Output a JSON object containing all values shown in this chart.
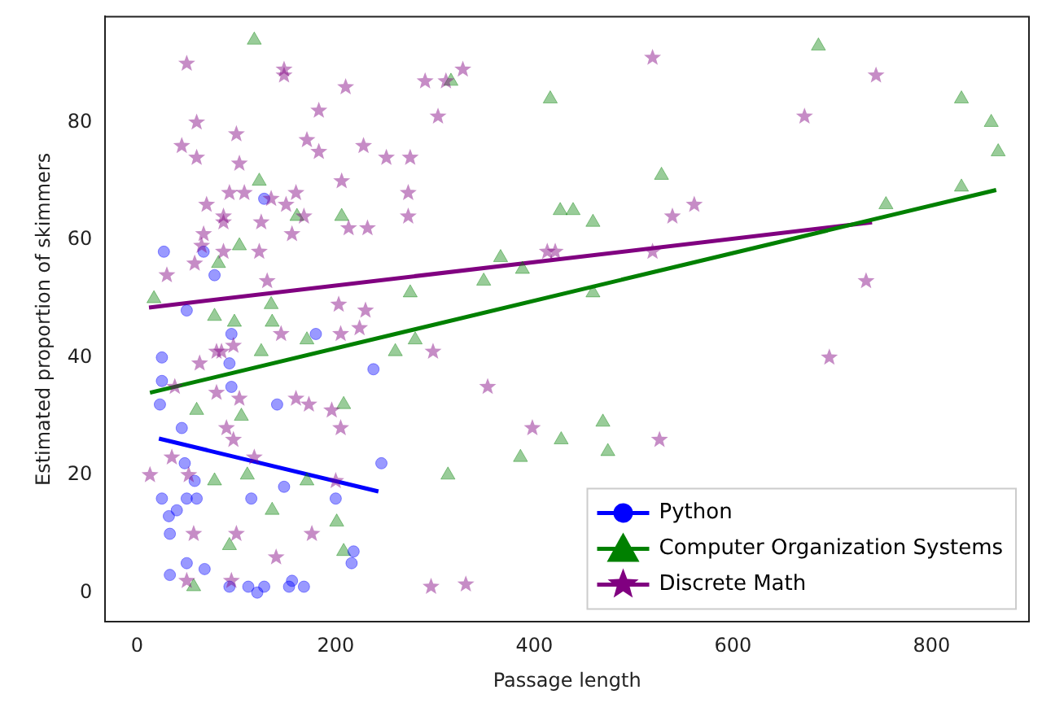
{
  "chart_data": {
    "type": "scatter",
    "xlabel": "Passage length",
    "ylabel": "Estimated proportion of skimmers",
    "xlim": [
      -32,
      898
    ],
    "ylim": [
      -5,
      98
    ],
    "xticks": [
      0,
      200,
      400,
      600,
      800
    ],
    "yticks": [
      0,
      20,
      40,
      60,
      80
    ],
    "grid": false,
    "legend": "bottom right",
    "series": [
      {
        "name": "Python",
        "color": "#0000ff",
        "marker": "circle",
        "x": [
          25,
          25,
          23,
          45,
          95,
          93,
          95,
          141,
          180,
          238,
          246,
          48,
          58,
          148,
          115,
          200,
          25,
          40,
          32,
          50,
          60,
          33,
          218,
          216,
          50,
          68,
          33,
          93,
          112,
          121,
          128,
          156,
          168,
          153,
          27,
          67,
          78,
          128,
          50
        ],
        "values": [
          40,
          36,
          32,
          28,
          44,
          39,
          35,
          32,
          44,
          38,
          22,
          22,
          19,
          18,
          16,
          16,
          16,
          14,
          13,
          16,
          16,
          10,
          7,
          5,
          5,
          4,
          3,
          1,
          1,
          0,
          1,
          2,
          1,
          1,
          58,
          58,
          54,
          67,
          48
        ]
      },
      {
        "name": "Computer Organization Systems",
        "color": "#008000",
        "marker": "triangle",
        "x": [
          118,
          123,
          206,
          161,
          103,
          82,
          17,
          275,
          135,
          78,
          98,
          136,
          171,
          125,
          260,
          280,
          60,
          105,
          208,
          111,
          78,
          171,
          136,
          201,
          208,
          93,
          57,
          313,
          686,
          416,
          316,
          830,
          860,
          867,
          528,
          426,
          439,
          459,
          754,
          830,
          366,
          349,
          388,
          459,
          469,
          427,
          474,
          386
        ],
        "values": [
          94,
          70,
          64,
          64,
          59,
          56,
          50,
          51,
          49,
          47,
          46,
          46,
          43,
          41,
          41,
          43,
          31,
          30,
          32,
          20,
          19,
          19,
          14,
          12,
          7,
          8,
          1,
          20,
          93,
          84,
          87,
          84,
          80,
          75,
          71,
          65,
          65,
          63,
          66,
          69,
          57,
          53,
          55,
          51,
          29,
          26,
          24,
          23
        ]
      },
      {
        "name": "Discrete Math",
        "color": "#800080",
        "marker": "star",
        "x": [
          50,
          148,
          148,
          210,
          290,
          303,
          183,
          60,
          100,
          45,
          60,
          171,
          183,
          228,
          251,
          275,
          103,
          206,
          273,
          273,
          93,
          108,
          135,
          160,
          70,
          150,
          87,
          87,
          125,
          168,
          213,
          232,
          156,
          67,
          65,
          58,
          87,
          123,
          30,
          131,
          203,
          230,
          224,
          205,
          145,
          85,
          97,
          63,
          80,
          298,
          38,
          80,
          103,
          160,
          173,
          196,
          205,
          90,
          97,
          118,
          35,
          13,
          52,
          200,
          57,
          100,
          176,
          140,
          50,
          95,
          296,
          519,
          744,
          672,
          328,
          311,
          539,
          561,
          413,
          421,
          519,
          734,
          353,
          697,
          398,
          526,
          331
        ],
        "values": [
          90,
          89,
          88,
          86,
          87,
          81,
          82,
          80,
          78,
          76,
          74,
          77,
          75,
          76,
          74,
          74,
          73,
          70,
          68,
          64,
          68,
          68,
          67,
          68,
          66,
          66,
          64,
          63,
          63,
          64,
          62,
          62,
          61,
          61,
          59,
          56,
          58,
          58,
          54,
          53,
          49,
          48,
          45,
          44,
          44,
          41,
          42,
          39,
          41,
          41,
          35,
          34,
          33,
          33,
          32,
          31,
          28,
          28,
          26,
          23,
          23,
          20,
          20,
          19,
          10,
          10,
          10,
          6,
          2,
          2,
          1,
          91,
          88,
          81,
          89,
          87,
          64,
          66,
          58,
          58,
          58,
          53,
          35,
          40,
          28,
          26,
          1.4
        ]
      },
      {
        "type": "line",
        "color": "#0000ff",
        "marker": "none",
        "x": [
          22,
          243
        ],
        "values": [
          26.2,
          17.2
        ]
      },
      {
        "type": "line",
        "color": "#008000",
        "marker": "none",
        "x": [
          13,
          865
        ],
        "values": [
          34,
          68.5
        ]
      },
      {
        "type": "line",
        "color": "#800080",
        "marker": "none",
        "x": [
          12,
          740
        ],
        "values": [
          48.5,
          63
        ]
      }
    ]
  }
}
